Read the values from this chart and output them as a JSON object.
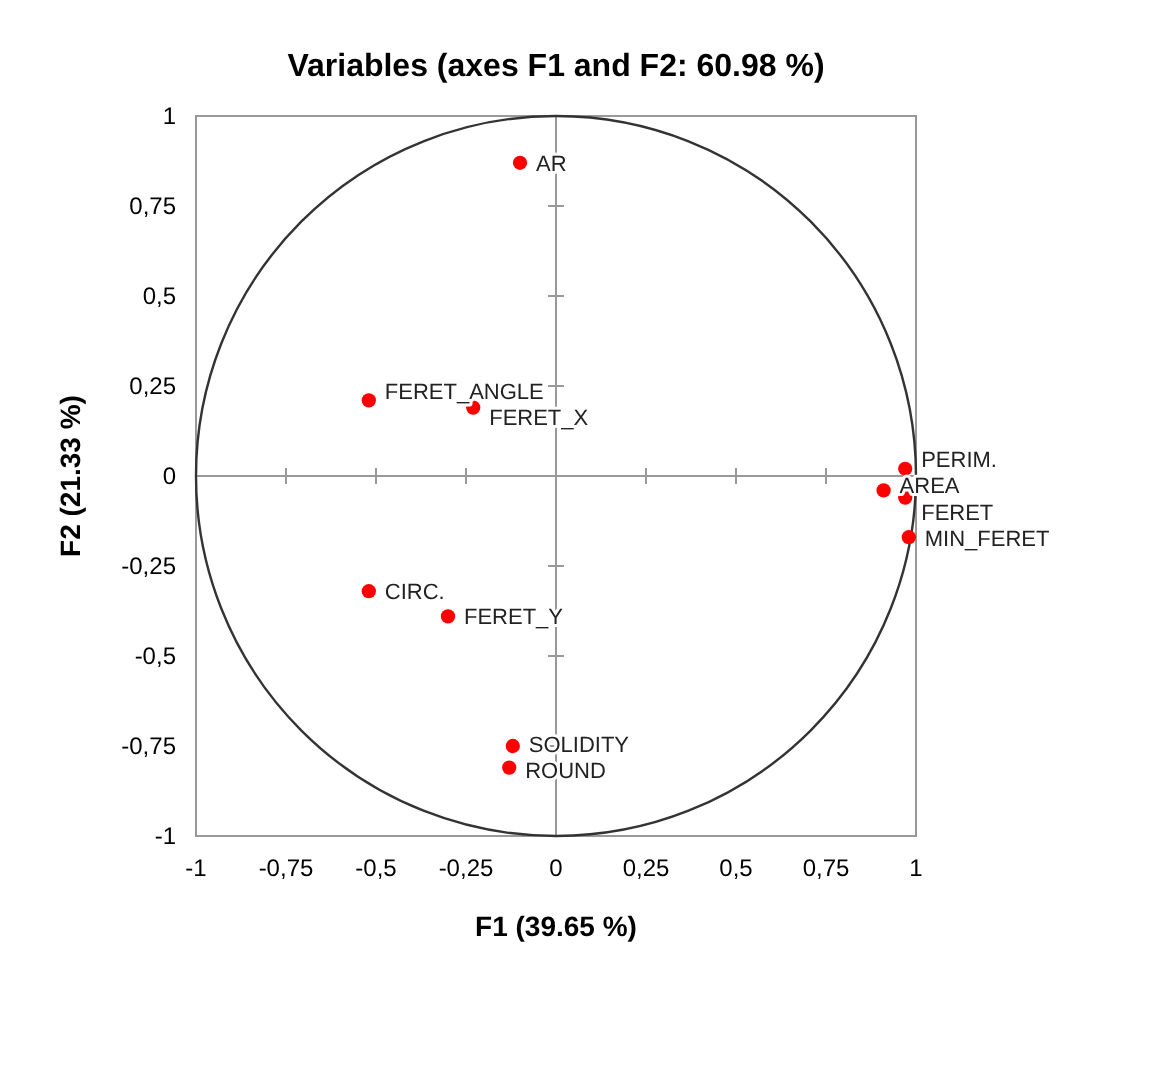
{
  "chart_data": {
    "type": "scatter",
    "title": "Variables (axes F1 and F2: 60.98 %)",
    "xlabel": "F1 (39.65 %)",
    "ylabel": "F2 (21.33 %)",
    "x": [
      -0.1,
      -0.52,
      -0.23,
      -0.52,
      -0.3,
      -0.12,
      -0.13,
      0.97,
      0.91,
      0.97,
      0.98
    ],
    "series": [
      {
        "color": "#ff0000",
        "values": [
          0.87,
          0.21,
          0.19,
          -0.32,
          -0.39,
          -0.75,
          -0.81,
          0.02,
          -0.04,
          -0.06,
          -0.17
        ]
      }
    ],
    "marker": "circle",
    "xlim": [
      -1,
      1
    ],
    "ylim": [
      -1,
      1
    ],
    "xticks": [
      -1,
      {
        "value": -0.75,
        "label": "-0,75"
      },
      {
        "value": -0.5,
        "label": "-0,5"
      },
      {
        "value": -0.25,
        "label": "-0,25"
      },
      0,
      {
        "value": 0.25,
        "label": "0,25"
      },
      {
        "value": 0.5,
        "label": "0,5"
      },
      {
        "value": 0.75,
        "label": "0,75"
      },
      1
    ],
    "yticks": [
      -1,
      {
        "value": -0.75,
        "label": "-0,75"
      },
      {
        "value": -0.5,
        "label": "-0,5"
      },
      {
        "value": -0.25,
        "label": "-0,25"
      },
      0,
      {
        "value": 0.25,
        "label": "0,25"
      },
      {
        "value": 0.5,
        "label": "0,5"
      },
      {
        "value": 0.75,
        "label": "0,75"
      },
      1
    ],
    "annotations": [
      {
        "text": "AR",
        "x": -0.1,
        "y": 0.87
      },
      {
        "text": "FERET_ANGLE",
        "x": -0.52,
        "y": 0.21
      },
      {
        "text": "FERET_X",
        "x": -0.23,
        "y": 0.19
      },
      {
        "text": "CIRC.",
        "x": -0.52,
        "y": -0.32
      },
      {
        "text": "FERET_Y",
        "x": -0.3,
        "y": -0.39
      },
      {
        "text": "SOLIDITY",
        "x": -0.12,
        "y": -0.75
      },
      {
        "text": "ROUND",
        "x": -0.13,
        "y": -0.81
      },
      {
        "text": "PERIM.",
        "x": 0.97,
        "y": 0.02
      },
      {
        "text": "AREA",
        "x": 0.91,
        "y": -0.04
      },
      {
        "text": "FERET",
        "x": 0.97,
        "y": -0.06
      },
      {
        "text": "MIN_FERET",
        "x": 0.98,
        "y": -0.17
      }
    ]
  }
}
